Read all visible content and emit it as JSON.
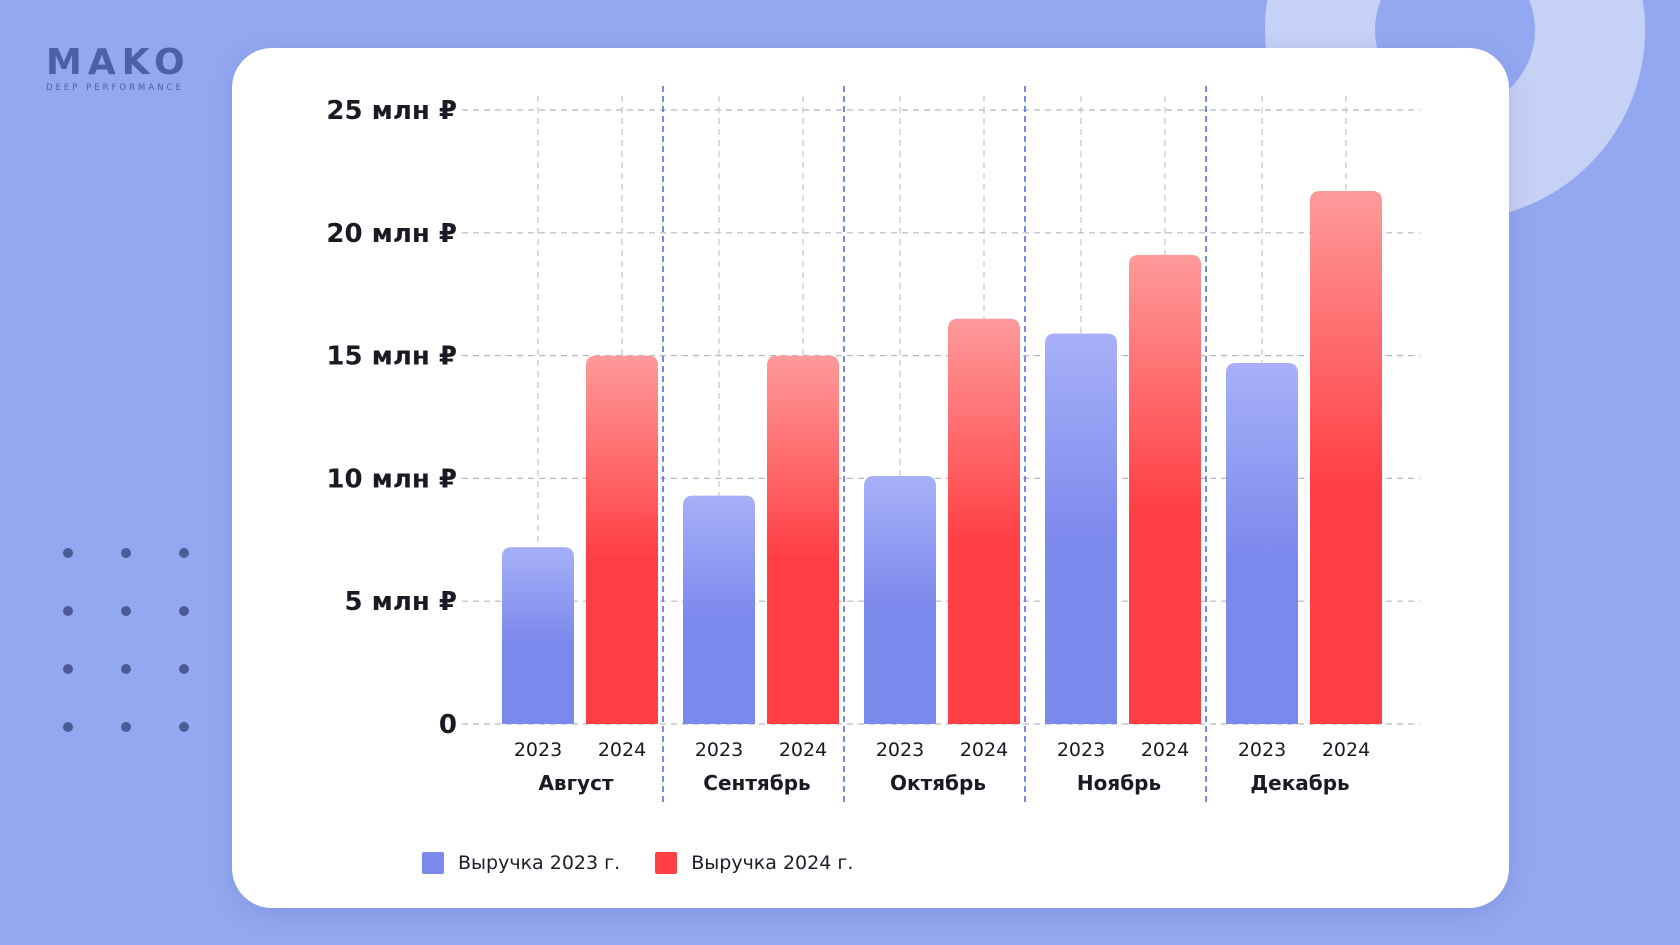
{
  "logo": {
    "word": "MAKO",
    "tagline": "DEEP PERFORMANCE"
  },
  "colors": {
    "background": "#93a8f0",
    "series_2023": "#7b88ec",
    "series_2023_top": "#a7b0f8",
    "series_2024": "#ff3f44",
    "series_2024_top": "#ff9a9a"
  },
  "chart_data": {
    "type": "bar",
    "title": "",
    "xlabel": "",
    "ylabel": "",
    "categories": [
      "Август",
      "Сентябрь",
      "Октябрь",
      "Ноябрь",
      "Декабрь"
    ],
    "sub_categories": [
      "2023",
      "2024"
    ],
    "series": [
      {
        "name": "Выручка 2023 г.",
        "values": [
          7.2,
          9.3,
          10.1,
          15.9,
          14.7
        ]
      },
      {
        "name": "Выручка 2024 г.",
        "values": [
          15.0,
          15.0,
          16.5,
          19.1,
          21.7
        ]
      }
    ],
    "y_ticks": [
      0,
      5,
      10,
      15,
      20,
      25
    ],
    "y_tick_labels": [
      "0",
      "5 млн ₽",
      "10 млн ₽",
      "15 млн ₽",
      "20 млн ₽",
      "25 млн ₽"
    ],
    "ylim": [
      0,
      25
    ],
    "grid": true,
    "legend_position": "bottom-left"
  }
}
